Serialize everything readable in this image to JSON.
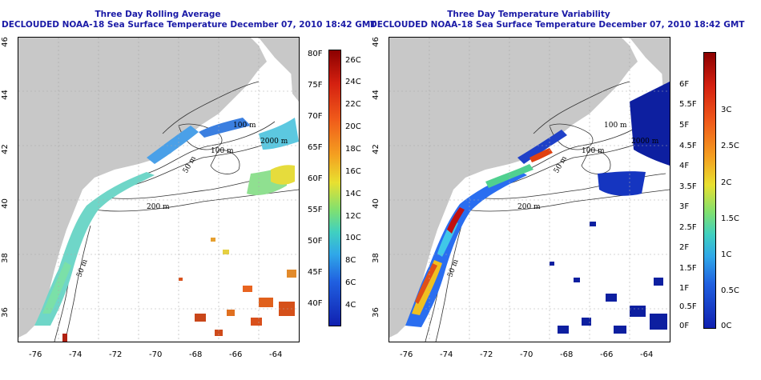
{
  "left_panel": {
    "title_line1": "Three Day Rolling Average",
    "title_line2": "DECLOUDED NOAA-18 Sea Surface Temperature December 07, 2010 18:42 GMT",
    "colorbar_f": [
      "80F",
      "75F",
      "70F",
      "65F",
      "60F",
      "55F",
      "50F",
      "45F",
      "40F"
    ],
    "colorbar_c": [
      "26C",
      "24C",
      "22C",
      "20C",
      "18C",
      "16C",
      "14C",
      "12C",
      "10C",
      "8C",
      "6C",
      "4C"
    ],
    "contour_labels": [
      "100 m",
      "2000 m",
      "100 m",
      "50 m",
      "200 m",
      "50 m"
    ]
  },
  "right_panel": {
    "title_line1": "Three Day Temperature Variability",
    "title_line2": "DECLOUDED NOAA-18 Sea Surface Temperature December 07, 2010 18:42 GMT",
    "colorbar_f": [
      "6F",
      "5.5F",
      "5F",
      "4.5F",
      "4F",
      "3.5F",
      "3F",
      "2.5F",
      "2F",
      "1.5F",
      "1F",
      "0.5F",
      "0F"
    ],
    "colorbar_c": [
      "3C",
      "2.5C",
      "2C",
      "1.5C",
      "1C",
      "0.5C",
      "0C"
    ],
    "contour_labels": [
      "100 m",
      "2000 m",
      "100 m",
      "50 m",
      "200 m",
      "50 m"
    ]
  },
  "axes": {
    "lat_ticks": [
      "46",
      "44",
      "42",
      "40",
      "38",
      "36"
    ],
    "lon_ticks": [
      "-76",
      "-74",
      "-72",
      "-70",
      "-68",
      "-66",
      "-64"
    ]
  },
  "colors": {
    "title": "#1a1aa6",
    "land": "#c8c8c8"
  }
}
